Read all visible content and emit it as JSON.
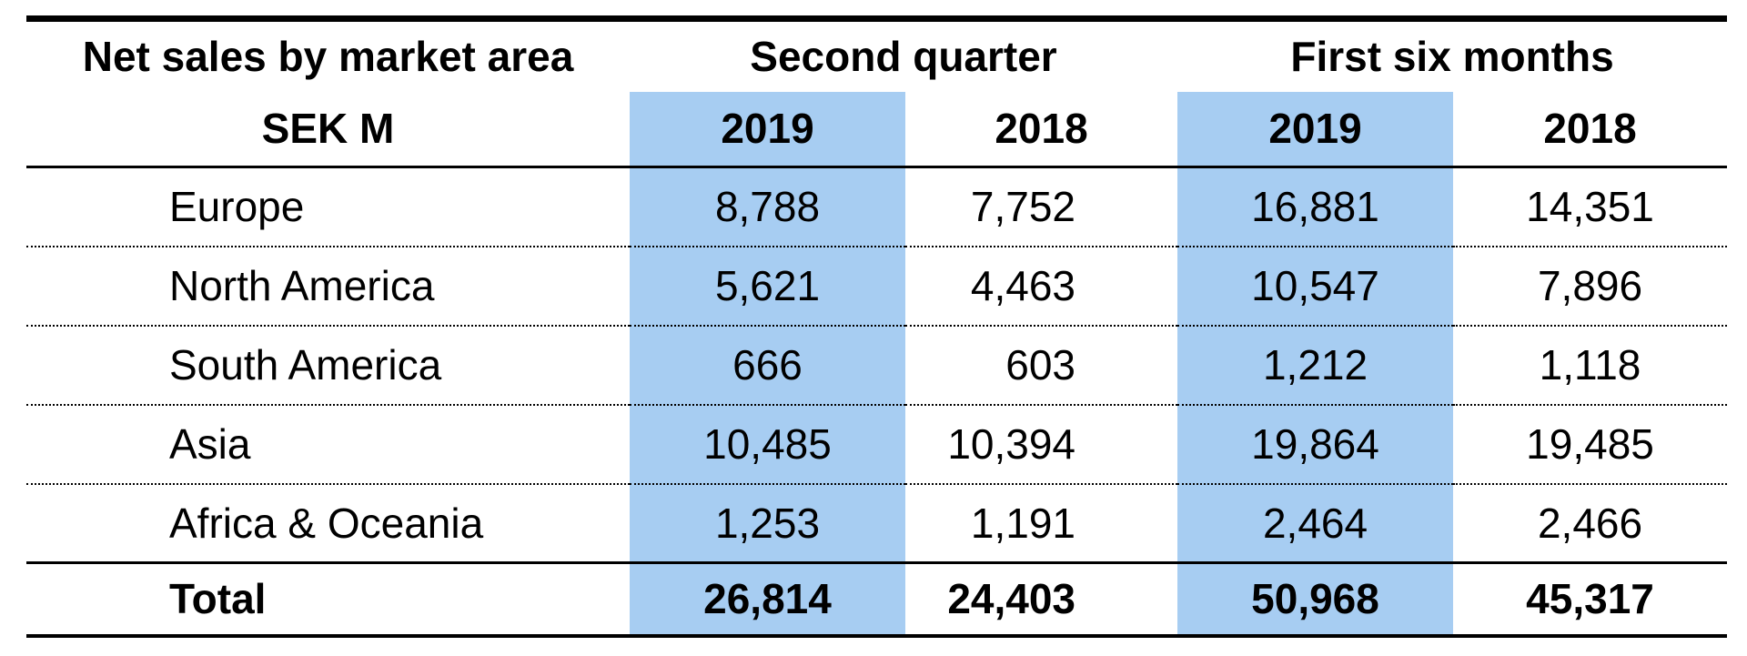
{
  "table": {
    "title_line1": "Net sales by market area",
    "title_line2": "SEK M",
    "unit": "SEK M",
    "column_groups": {
      "group1": "Second quarter",
      "group2": "First six months"
    },
    "year_cols": [
      "2019",
      "2018",
      "2019",
      "2018"
    ],
    "highlight_color": "#a7cdf2",
    "rows": [
      {
        "label": "Europe",
        "q2_2019": "8,788",
        "q2_2018": "7,752",
        "h1_2019": "16,881",
        "h1_2018": "14,351"
      },
      {
        "label": "North America",
        "q2_2019": "5,621",
        "q2_2018": "4,463",
        "h1_2019": "10,547",
        "h1_2018": "7,896"
      },
      {
        "label": "South America",
        "q2_2019": "666",
        "q2_2018": "603",
        "h1_2019": "1,212",
        "h1_2018": "1,118"
      },
      {
        "label": "Asia",
        "q2_2019": "10,485",
        "q2_2018": "10,394",
        "h1_2019": "19,864",
        "h1_2018": "19,485"
      },
      {
        "label": "Africa & Oceania",
        "q2_2019": "1,253",
        "q2_2018": "1,191",
        "h1_2019": "2,464",
        "h1_2018": "2,466"
      }
    ],
    "total": {
      "label": "Total",
      "q2_2019": "26,814",
      "q2_2018": "24,403",
      "h1_2019": "50,968",
      "h1_2018": "45,317"
    }
  }
}
